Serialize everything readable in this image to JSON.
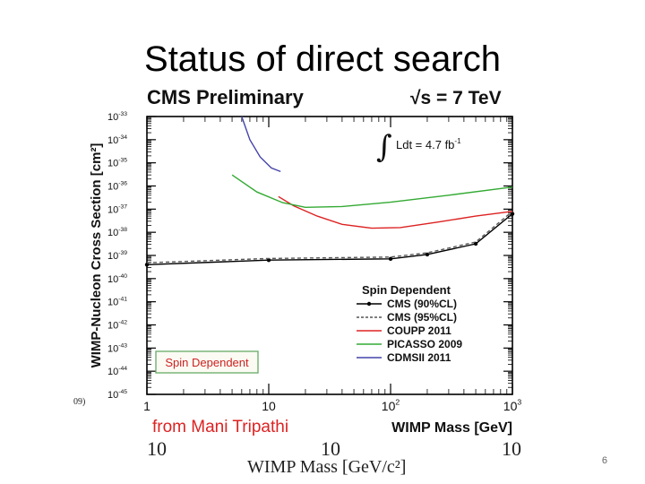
{
  "slide": {
    "title": "Status of direct search",
    "page_number": "6",
    "underlying_axis": {
      "label": "WIMP Mass [GeV/c²]",
      "ticks": [
        "10",
        "10",
        "10"
      ],
      "left_stub": "09)"
    }
  },
  "chart_data": {
    "type": "line",
    "header_left": "CMS Preliminary",
    "header_right": "√s = 7 TeV",
    "luminosity": "Ldt = 4.7 fb",
    "luminosity_sup": "-1",
    "xlabel": "WIMP Mass [GeV]",
    "ylabel": "WIMP-Nucleon Cross Section [cm²]",
    "x_scale": "log",
    "y_scale": "log",
    "xlim": [
      1,
      1000
    ],
    "ylim": [
      1e-45,
      1e-33
    ],
    "x_ticks": [
      {
        "value": 1,
        "label": "1"
      },
      {
        "value": 10,
        "label": "10"
      },
      {
        "value": 100,
        "label": "10",
        "sup": "2"
      },
      {
        "value": 1000,
        "label": "10",
        "sup": "3"
      }
    ],
    "y_ticks": [
      {
        "value": 1e-33,
        "label": "10",
        "sup": "-33"
      },
      {
        "value": 1e-34,
        "label": "10",
        "sup": "-34"
      },
      {
        "value": 1e-35,
        "label": "10",
        "sup": "-35"
      },
      {
        "value": 1e-36,
        "label": "10",
        "sup": "-36"
      },
      {
        "value": 1e-37,
        "label": "10",
        "sup": "-37"
      },
      {
        "value": 1e-38,
        "label": "10",
        "sup": "-38"
      },
      {
        "value": 1e-39,
        "label": "10",
        "sup": "-39"
      },
      {
        "value": 1e-40,
        "label": "10",
        "sup": "-40"
      },
      {
        "value": 1e-41,
        "label": "10",
        "sup": "-41"
      },
      {
        "value": 1e-42,
        "label": "10",
        "sup": "-42"
      },
      {
        "value": 1e-43,
        "label": "10",
        "sup": "-43"
      },
      {
        "value": 1e-44,
        "label": "10",
        "sup": "-44"
      },
      {
        "value": 1e-45,
        "label": "10",
        "sup": "-45"
      }
    ],
    "legend_title": "Spin Dependent",
    "legend_position": "bottom-right",
    "annotation_box": "Spin Dependent",
    "credit": "from Mani Tripathi",
    "series": [
      {
        "name": "CMS (90%CL)",
        "color": "#000000",
        "style": "solid-markers",
        "points": [
          [
            1,
            4e-40
          ],
          [
            10,
            6.3e-40
          ],
          [
            100,
            7.1e-40
          ],
          [
            200,
            1.1e-39
          ],
          [
            500,
            3.2e-39
          ],
          [
            1000,
            6.3e-38
          ]
        ]
      },
      {
        "name": "CMS (95%CL)",
        "color": "#555555",
        "style": "dashed",
        "points": [
          [
            1,
            4.8e-40
          ],
          [
            10,
            7.4e-40
          ],
          [
            100,
            8.5e-40
          ],
          [
            200,
            1.3e-39
          ],
          [
            500,
            3.8e-39
          ],
          [
            1000,
            8e-38
          ]
        ]
      },
      {
        "name": "COUPP 2011",
        "color": "#dd2222",
        "style": "solid",
        "points": [
          [
            12,
            3.5e-37
          ],
          [
            16,
            1.4e-37
          ],
          [
            25,
            5e-38
          ],
          [
            40,
            2.2e-38
          ],
          [
            70,
            1.5e-38
          ],
          [
            120,
            1.6e-38
          ],
          [
            250,
            2.8e-38
          ],
          [
            500,
            5e-38
          ],
          [
            1000,
            8e-38
          ]
        ]
      },
      {
        "name": "PICASSO 2009",
        "color": "#33aa33",
        "style": "solid",
        "points": [
          [
            5,
            3e-36
          ],
          [
            8,
            5.5e-37
          ],
          [
            13,
            1.9e-37
          ],
          [
            20,
            1.2e-37
          ],
          [
            40,
            1.3e-37
          ],
          [
            100,
            2e-37
          ],
          [
            300,
            4e-37
          ],
          [
            1000,
            9e-37
          ]
        ]
      },
      {
        "name": "CDMSII 2011",
        "color": "#4444aa",
        "style": "solid",
        "points": [
          [
            6,
            1e-33
          ],
          [
            7,
            1e-34
          ],
          [
            8.5,
            1.8e-35
          ],
          [
            10.5,
            6e-36
          ],
          [
            12.5,
            4.2e-36
          ]
        ]
      }
    ]
  }
}
